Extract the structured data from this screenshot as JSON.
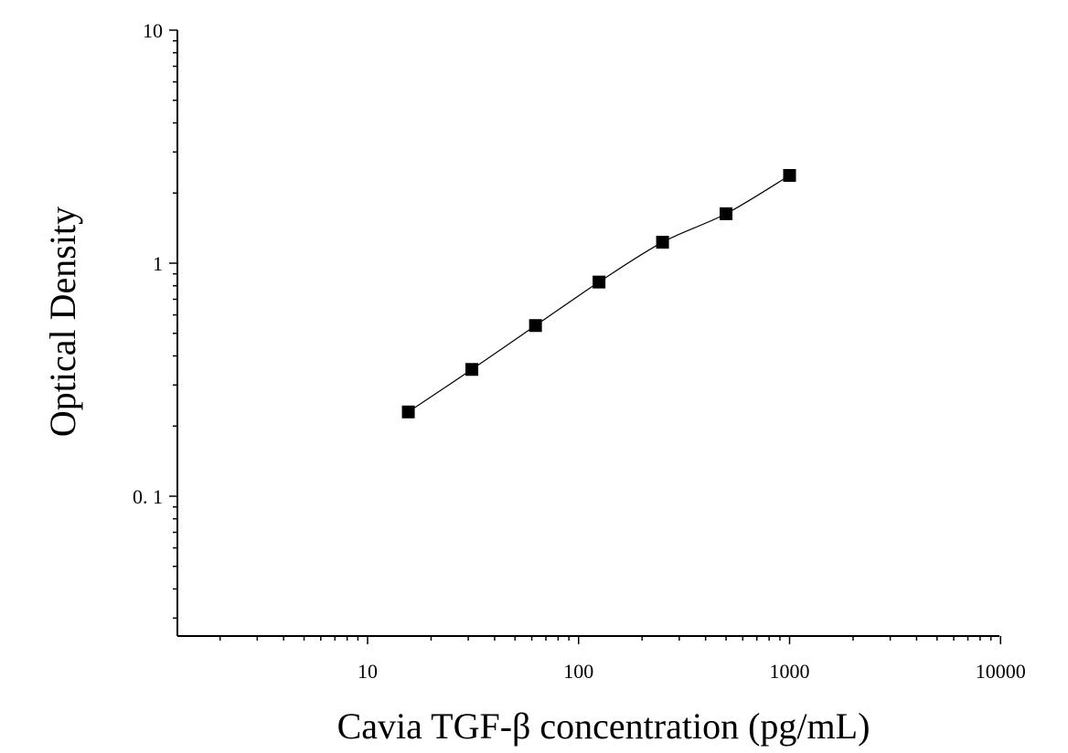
{
  "chart_data": {
    "type": "scatter",
    "xlabel": "Cavia TGF-β concentration (pg/mL)",
    "ylabel": "Optical Density",
    "x_scale": "log",
    "y_scale": "log",
    "xlim": [
      1.2,
      10000
    ],
    "ylim": [
      0.025,
      10
    ],
    "x_ticks": [
      10,
      100,
      1000,
      10000
    ],
    "x_tick_labels": [
      "10",
      "100",
      "1000",
      "10000"
    ],
    "y_ticks": [
      0.1,
      1,
      10
    ],
    "y_tick_labels": [
      "0. 1",
      "1",
      "10"
    ],
    "grid": false,
    "legend": false,
    "series": [
      {
        "x": [
          15.6,
          31.2,
          62.5,
          125,
          250,
          500,
          1000
        ],
        "y": [
          0.23,
          0.35,
          0.54,
          0.83,
          1.23,
          1.63,
          2.38
        ],
        "marker": "square",
        "fit_line": true
      }
    ],
    "colors": {
      "marker": "#000000",
      "line": "#000000",
      "axis": "#000000"
    }
  }
}
